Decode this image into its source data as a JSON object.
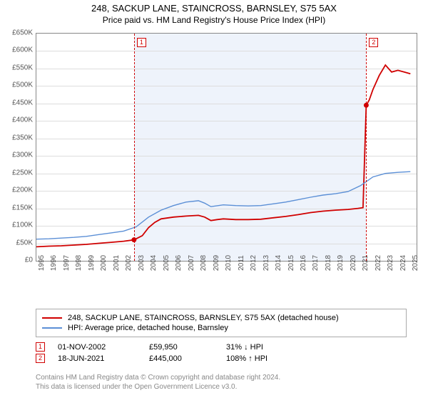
{
  "title": "248, SACKUP LANE, STAINCROSS, BARNSLEY, S75 5AX",
  "subtitle": "Price paid vs. HM Land Registry's House Price Index (HPI)",
  "chart": {
    "type": "line",
    "background_color": "#ffffff",
    "shaded_region_color": "#eef3fb",
    "shaded_from_year": 2002.83,
    "shaded_to_year": 2021.46,
    "xlim": [
      1995,
      2025.5
    ],
    "ylim": [
      0,
      650000
    ],
    "ytick_step": 50000,
    "yticks": [
      "£0",
      "£50K",
      "£100K",
      "£150K",
      "£200K",
      "£250K",
      "£300K",
      "£350K",
      "£400K",
      "£450K",
      "£500K",
      "£550K",
      "£600K",
      "£650K"
    ],
    "xticks": [
      1995,
      1996,
      1997,
      1998,
      1999,
      2000,
      2001,
      2002,
      2003,
      2004,
      2005,
      2006,
      2007,
      2008,
      2009,
      2010,
      2011,
      2012,
      2013,
      2014,
      2015,
      2016,
      2017,
      2018,
      2019,
      2020,
      2021,
      2022,
      2023,
      2024,
      2025
    ],
    "grid_color": "#dddddd",
    "axis_font_size": 10,
    "title_font_size": 13,
    "series": [
      {
        "name": "248, SACKUP LANE, STAINCROSS, BARNSLEY, S75 5AX (detached house)",
        "color": "#d00000",
        "width": 1.8,
        "points": [
          [
            1995,
            40000
          ],
          [
            1996,
            42000
          ],
          [
            1997,
            43000
          ],
          [
            1998,
            45000
          ],
          [
            1999,
            47000
          ],
          [
            2000,
            50000
          ],
          [
            2001,
            53000
          ],
          [
            2002,
            56000
          ],
          [
            2002.83,
            59950
          ],
          [
            2003.5,
            72000
          ],
          [
            2004,
            95000
          ],
          [
            2004.5,
            110000
          ],
          [
            2005,
            120000
          ],
          [
            2006,
            125000
          ],
          [
            2007,
            128000
          ],
          [
            2008,
            130000
          ],
          [
            2008.5,
            125000
          ],
          [
            2009,
            115000
          ],
          [
            2009.5,
            118000
          ],
          [
            2010,
            120000
          ],
          [
            2011,
            118000
          ],
          [
            2012,
            118000
          ],
          [
            2013,
            119000
          ],
          [
            2014,
            123000
          ],
          [
            2015,
            127000
          ],
          [
            2016,
            132000
          ],
          [
            2017,
            138000
          ],
          [
            2018,
            142000
          ],
          [
            2019,
            145000
          ],
          [
            2020,
            147000
          ],
          [
            2020.8,
            150000
          ],
          [
            2021.2,
            152000
          ],
          [
            2021.46,
            445000
          ],
          [
            2021.7,
            460000
          ],
          [
            2022,
            490000
          ],
          [
            2022.5,
            530000
          ],
          [
            2023,
            560000
          ],
          [
            2023.5,
            540000
          ],
          [
            2024,
            545000
          ],
          [
            2024.5,
            540000
          ],
          [
            2025,
            535000
          ]
        ]
      },
      {
        "name": "HPI: Average price, detached house, Barnsley",
        "color": "#5b8fd6",
        "width": 1.4,
        "points": [
          [
            1995,
            62000
          ],
          [
            1996,
            63000
          ],
          [
            1997,
            65000
          ],
          [
            1998,
            67000
          ],
          [
            1999,
            70000
          ],
          [
            2000,
            75000
          ],
          [
            2001,
            80000
          ],
          [
            2002,
            85000
          ],
          [
            2003,
            97000
          ],
          [
            2004,
            125000
          ],
          [
            2005,
            145000
          ],
          [
            2006,
            158000
          ],
          [
            2007,
            168000
          ],
          [
            2008,
            172000
          ],
          [
            2008.5,
            165000
          ],
          [
            2009,
            155000
          ],
          [
            2010,
            160000
          ],
          [
            2011,
            158000
          ],
          [
            2012,
            157000
          ],
          [
            2013,
            158000
          ],
          [
            2014,
            163000
          ],
          [
            2015,
            168000
          ],
          [
            2016,
            175000
          ],
          [
            2017,
            182000
          ],
          [
            2018,
            188000
          ],
          [
            2019,
            192000
          ],
          [
            2020,
            198000
          ],
          [
            2021,
            215000
          ],
          [
            2022,
            240000
          ],
          [
            2023,
            250000
          ],
          [
            2024,
            253000
          ],
          [
            2025,
            255000
          ]
        ]
      }
    ],
    "markers": [
      {
        "id": "1",
        "year": 2002.83,
        "price": 59950
      },
      {
        "id": "2",
        "year": 2021.46,
        "price": 445000
      }
    ]
  },
  "legend": {
    "rows": [
      {
        "color": "#d00000",
        "label": "248, SACKUP LANE, STAINCROSS, BARNSLEY, S75 5AX (detached house)"
      },
      {
        "color": "#5b8fd6",
        "label": "HPI: Average price, detached house, Barnsley"
      }
    ]
  },
  "sales": [
    {
      "id": "1",
      "date": "01-NOV-2002",
      "price": "£59,950",
      "delta": "31% ↓ HPI"
    },
    {
      "id": "2",
      "date": "18-JUN-2021",
      "price": "£445,000",
      "delta": "108% ↑ HPI"
    }
  ],
  "footer": {
    "line1": "Contains HM Land Registry data © Crown copyright and database right 2024.",
    "line2": "This data is licensed under the Open Government Licence v3.0."
  }
}
